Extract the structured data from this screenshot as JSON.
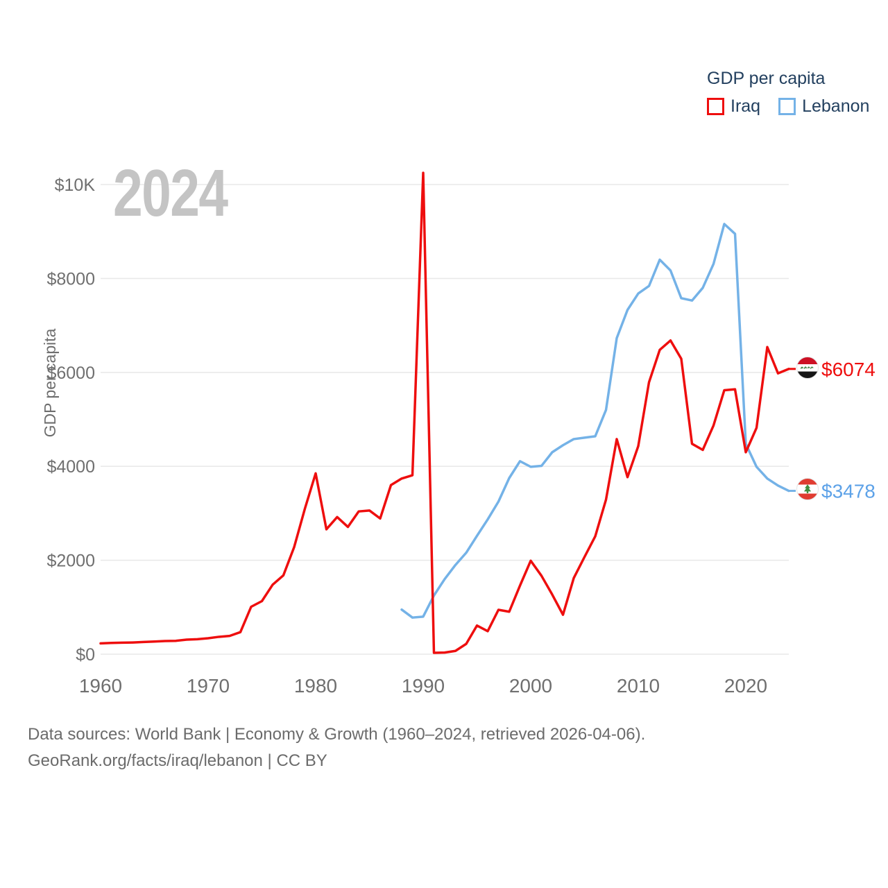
{
  "watermark": "2024",
  "legend": {
    "title": "GDP per capita",
    "items": [
      {
        "label": "Iraq",
        "color": "#ee0e0e"
      },
      {
        "label": "Lebanon",
        "color": "#74b2e7"
      }
    ]
  },
  "footer": {
    "line1": "Data sources: World Bank | Economy & Growth (1960–2024, retrieved 2026-04-06).",
    "line2": "GeoRank.org/facts/iraq/lebanon | CC BY"
  },
  "chart_data": {
    "type": "line",
    "title": "GDP per capita",
    "xlabel": "",
    "ylabel": "GDP per capita",
    "xlim": [
      1960,
      2024
    ],
    "ylim": [
      0,
      10400
    ],
    "grid": "horizontal",
    "legend_position": "top-right",
    "x_ticks": [
      1960,
      1970,
      1980,
      1990,
      2000,
      2010,
      2020
    ],
    "y_ticks": [
      {
        "v": 0,
        "label": "$0"
      },
      {
        "v": 2000,
        "label": "$2000"
      },
      {
        "v": 4000,
        "label": "$4000"
      },
      {
        "v": 6000,
        "label": "$6000"
      },
      {
        "v": 8000,
        "label": "$8000"
      },
      {
        "v": 10000,
        "label": "$10K"
      }
    ],
    "series": [
      {
        "name": "Lebanon",
        "color": "#74b2e7",
        "label_color": "#5da2e8",
        "end_label": "$3478",
        "start_year": 1988,
        "values": [
          950,
          780,
          800,
          1250,
          1600,
          1900,
          2160,
          2520,
          2870,
          3250,
          3750,
          4110,
          3990,
          4010,
          4300,
          4450,
          4580,
          4610,
          4640,
          5200,
          6730,
          7330,
          7680,
          7840,
          8400,
          8170,
          7580,
          7530,
          7800,
          8310,
          9160,
          8950,
          4480,
          3990,
          3740,
          3590,
          3478
        ]
      },
      {
        "name": "Iraq",
        "color": "#ee0e0e",
        "label_color": "#ee0e0e",
        "end_label": "$6074",
        "start_year": 1960,
        "values": [
          230,
          240,
          245,
          250,
          260,
          270,
          280,
          285,
          310,
          320,
          340,
          370,
          390,
          470,
          1010,
          1130,
          1480,
          1680,
          2280,
          3100,
          3850,
          2660,
          2920,
          2710,
          3040,
          3060,
          2890,
          3600,
          3740,
          3810,
          10250,
          30,
          35,
          70,
          220,
          610,
          490,
          945,
          905,
          1460,
          1990,
          1670,
          1270,
          840,
          1620,
          2070,
          2510,
          3290,
          4580,
          3770,
          4430,
          5790,
          6480,
          6680,
          6290,
          4480,
          4350,
          4870,
          5620,
          5640,
          4300,
          4820,
          6540,
          5980,
          6074
        ]
      }
    ]
  }
}
